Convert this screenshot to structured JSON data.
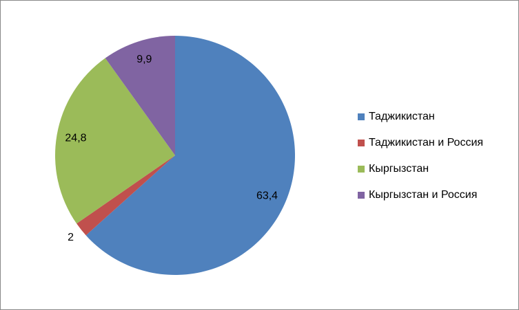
{
  "chart_data": {
    "type": "pie",
    "categories": [
      "Таджикистан",
      "Таджикистан и Россия",
      "Кыргызстан",
      "Кыргызстан и Россия"
    ],
    "values": [
      63.4,
      2,
      24.8,
      9.9
    ],
    "value_labels": [
      "63,4",
      "2",
      "24,8",
      "9,9"
    ],
    "colors": [
      "#4f81bd",
      "#c0504d",
      "#9bbb59",
      "#8064a2"
    ],
    "legend": "right"
  }
}
